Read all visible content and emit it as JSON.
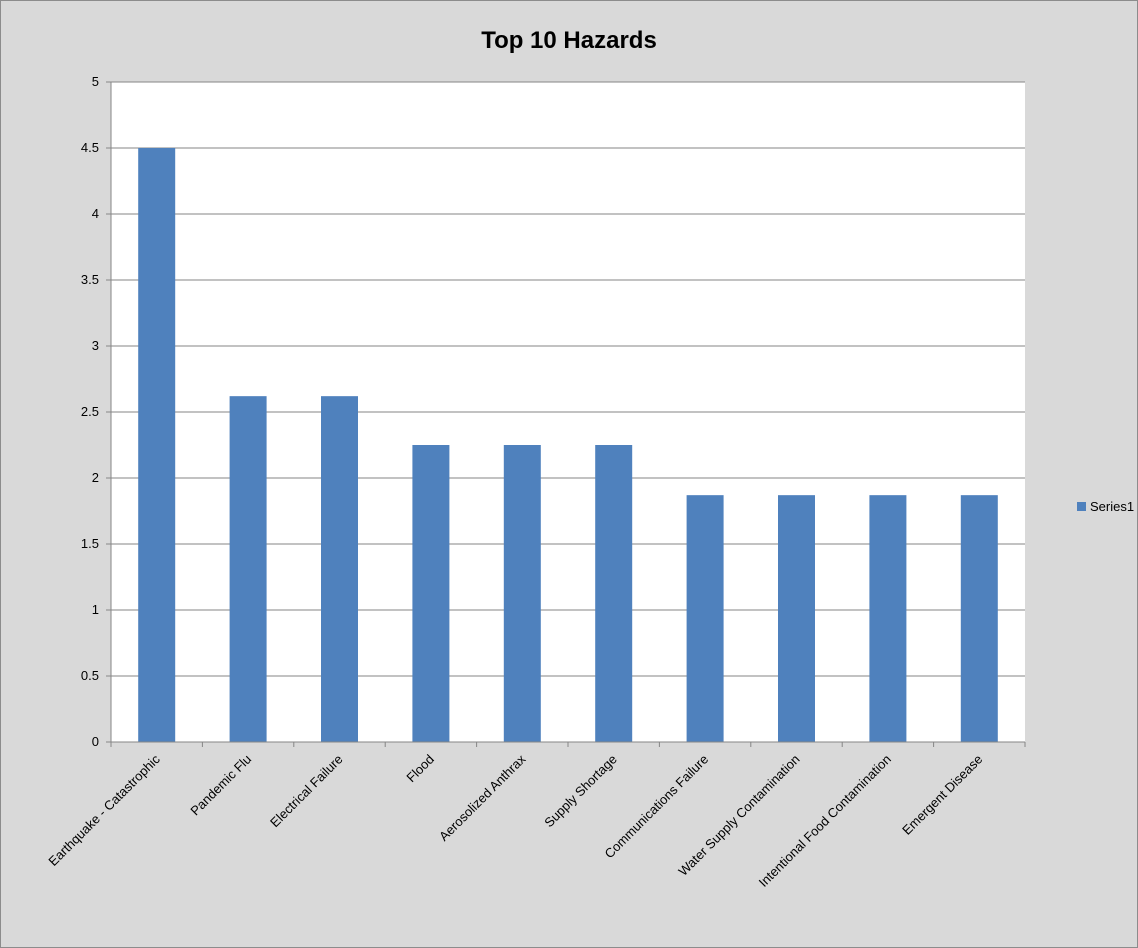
{
  "chart_data": {
    "type": "bar",
    "title": "Top 10 Hazards",
    "xlabel": "",
    "ylabel": "",
    "categories": [
      "Earthquake - Catastrophic",
      "Pandemic Flu",
      "Electrical Failure",
      "Flood",
      "Aerosolized Anthrax",
      "Supply Shortage",
      "Communications Failure",
      "Water Supply Contamination",
      "Intentional Food Contamination",
      "Emergent Disease"
    ],
    "series": [
      {
        "name": "Series1",
        "color": "#4f81bd",
        "values": [
          4.5,
          2.62,
          2.62,
          2.25,
          2.25,
          2.25,
          1.87,
          1.87,
          1.87,
          1.87
        ]
      }
    ],
    "ylim": [
      0,
      5
    ],
    "yticks": [
      "0",
      "0.5",
      "1",
      "1.5",
      "2",
      "2.5",
      "3",
      "3.5",
      "4",
      "4.5",
      "5"
    ],
    "grid": true,
    "legend_position": "right"
  }
}
